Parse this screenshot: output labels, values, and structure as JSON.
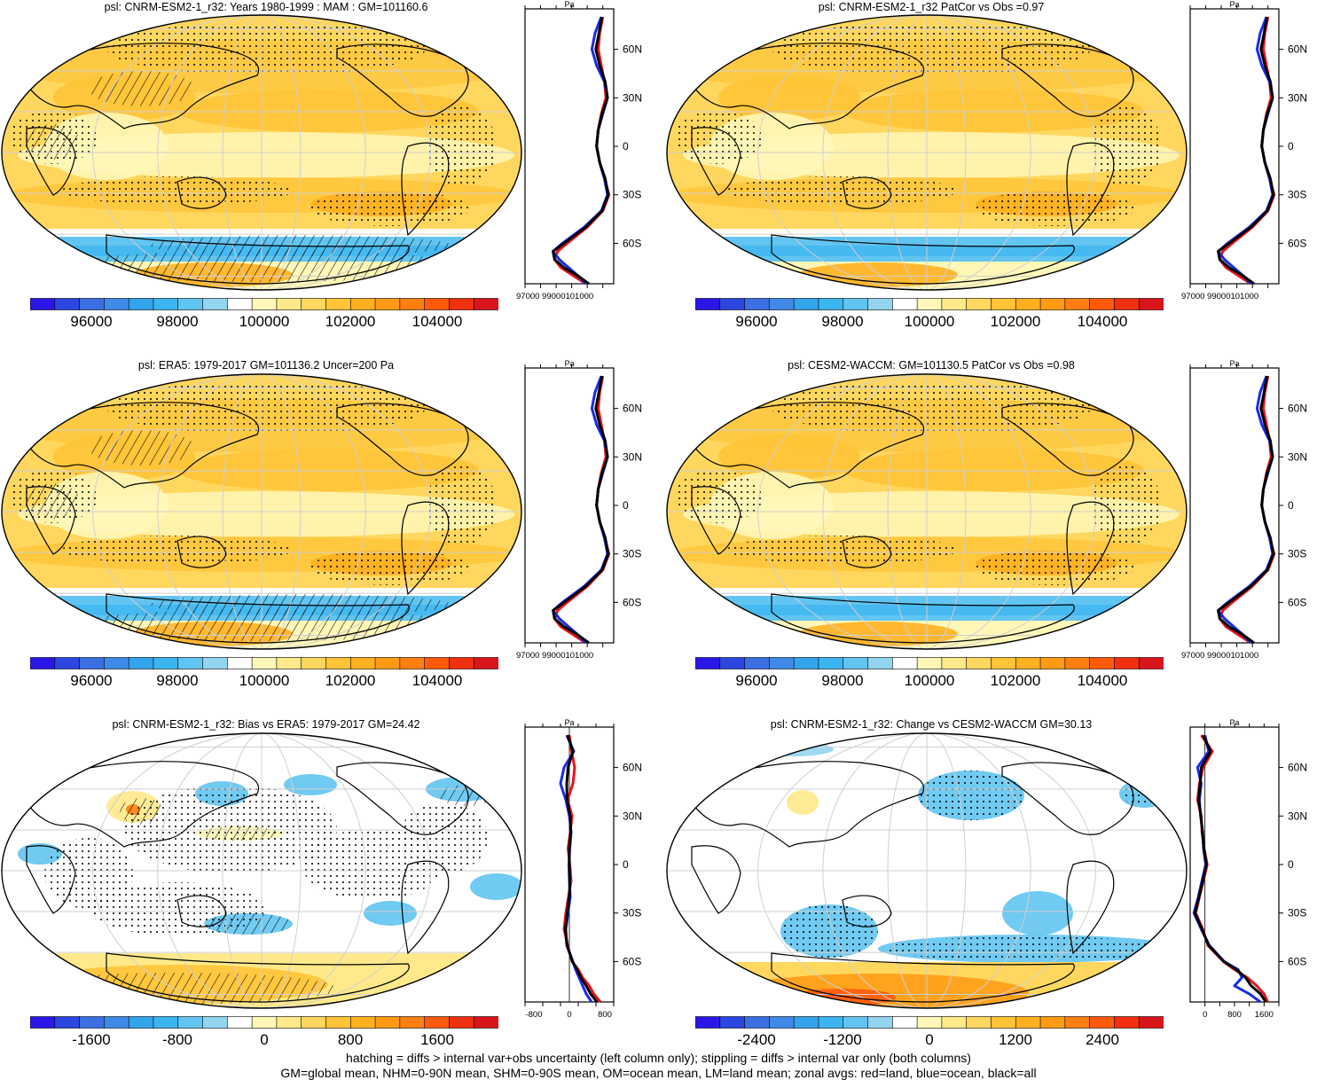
{
  "panels": [
    {
      "id": "p1",
      "title": "psl: CNRM-ESM2-1_r32: Years 1980-1999 : MAM : GM=101160.6",
      "kind": "abs",
      "hatch": true
    },
    {
      "id": "p2",
      "title": "psl: CNRM-ESM2-1_r32 PatCor vs Obs =0.97",
      "kind": "abs",
      "hatch": false
    },
    {
      "id": "p3",
      "title": "psl: ERA5: 1979-2017 GM=101136.2 Uncer=200 Pa",
      "kind": "abs",
      "hatch": true
    },
    {
      "id": "p4",
      "title": "psl: CESM2-WACCM: GM=101130.5 PatCor vs Obs =0.98",
      "kind": "abs",
      "hatch": false
    },
    {
      "id": "p5",
      "title": "psl: CNRM-ESM2-1_r32: Bias vs ERA5: 1979-2017 GM=24.42",
      "kind": "diff",
      "hatch": true
    },
    {
      "id": "p6",
      "title": "psl: CNRM-ESM2-1_r32: Change vs CESM2-WACCM GM=30.13",
      "kind": "change",
      "hatch": false
    }
  ],
  "colorbars": {
    "abs": {
      "labels": [
        "96000",
        "98000",
        "100000",
        "102000",
        "104000"
      ]
    },
    "diff": {
      "labels": [
        "-1600",
        "-800",
        "0",
        "800",
        "1600"
      ]
    },
    "change": {
      "labels": [
        "-2400",
        "-1200",
        "0",
        "1200",
        "2400"
      ]
    }
  },
  "palette": [
    "#2a17e6",
    "#2c46e0",
    "#3b6fe2",
    "#3f8ae6",
    "#33a3ec",
    "#3bb5f0",
    "#62c4f0",
    "#93d4f0",
    "#ffffff",
    "#fff7b8",
    "#ffe98a",
    "#ffd75e",
    "#ffc437",
    "#ffb021",
    "#ff9a14",
    "#ff7f10",
    "#ff5a0c",
    "#f03010",
    "#d9141a"
  ],
  "zonal": {
    "unit": "Pa",
    "lat_ticks": [
      "60N",
      "30N",
      "0",
      "30S",
      "60S"
    ],
    "abs_xticks": [
      "97000",
      "99000",
      "101000"
    ],
    "abs_xtick_text": "97000 99000101000",
    "diff_xticks": [
      "-800",
      "0",
      "800"
    ],
    "change_xticks": [
      "0",
      "800",
      "1600"
    ],
    "lat": [
      80,
      70,
      60,
      50,
      40,
      30,
      20,
      10,
      0,
      -10,
      -20,
      -30,
      -40,
      -50,
      -60,
      -65,
      -70,
      -75,
      -80,
      -85
    ],
    "abs_series": [
      {
        "name": "land",
        "color": "#e8141a",
        "values": [
          101500,
          101300,
          101200,
          101400,
          101600,
          101700,
          101400,
          101200,
          101100,
          101300,
          101600,
          101900,
          101500,
          100500,
          99200,
          98600,
          98400,
          98800,
          99600,
          100400
        ]
      },
      {
        "name": "ocean",
        "color": "#1a2be6",
        "values": [
          101400,
          101000,
          100800,
          101100,
          101600,
          101800,
          101500,
          101200,
          101100,
          101300,
          101600,
          101800,
          101400,
          100300,
          98900,
          98300,
          98700,
          99300,
          99900,
          100400
        ]
      },
      {
        "name": "all",
        "color": "#000000",
        "values": [
          101450,
          101250,
          101050,
          101300,
          101650,
          101800,
          101450,
          101200,
          101100,
          101300,
          101650,
          101850,
          101450,
          100400,
          99000,
          98300,
          98400,
          99000,
          99900,
          100600
        ]
      }
    ],
    "diff_series": [
      {
        "name": "land",
        "color": "#e8141a",
        "values": [
          0,
          50,
          120,
          80,
          -40,
          60,
          20,
          -30,
          10,
          40,
          -20,
          -80,
          -120,
          -40,
          60,
          200,
          300,
          450,
          550,
          700
        ]
      },
      {
        "name": "ocean",
        "color": "#1a2be6",
        "values": [
          -60,
          100,
          -120,
          -200,
          -80,
          0,
          40,
          10,
          -10,
          0,
          20,
          -30,
          -80,
          -60,
          80,
          140,
          220,
          300,
          380,
          500
        ]
      },
      {
        "name": "all",
        "color": "#000000",
        "values": [
          -40,
          80,
          -30,
          -60,
          -50,
          20,
          30,
          0,
          0,
          10,
          0,
          -50,
          -90,
          -50,
          70,
          180,
          260,
          380,
          480,
          620
        ]
      }
    ],
    "change_series": [
      {
        "name": "land",
        "color": "#e8141a",
        "values": [
          -100,
          200,
          -50,
          -150,
          -200,
          -100,
          -80,
          -20,
          60,
          -40,
          -150,
          -250,
          -60,
          80,
          500,
          800,
          1150,
          1400,
          1600,
          1700
        ]
      },
      {
        "name": "ocean",
        "color": "#1a2be6",
        "values": [
          0,
          100,
          -200,
          -100,
          -150,
          -120,
          -60,
          -40,
          20,
          -80,
          -180,
          -300,
          -100,
          120,
          520,
          900,
          1000,
          800,
          1200,
          1500
        ]
      },
      {
        "name": "all",
        "color": "#000000",
        "values": [
          -50,
          150,
          -100,
          -130,
          -170,
          -110,
          -70,
          -30,
          40,
          -60,
          -160,
          -270,
          -80,
          100,
          510,
          850,
          1100,
          1250,
          1500,
          1650
        ]
      }
    ]
  },
  "footer": {
    "line1": "hatching = diffs > internal var+obs uncertainty (left column only); stippling = diffs > internal var only (both columns)",
    "line2": "GM=global mean, NHM=0-90N mean, SHM=0-90S mean, OM=ocean mean, LM=land mean; zonal avgs: red=land, blue=ocean, black=all"
  }
}
